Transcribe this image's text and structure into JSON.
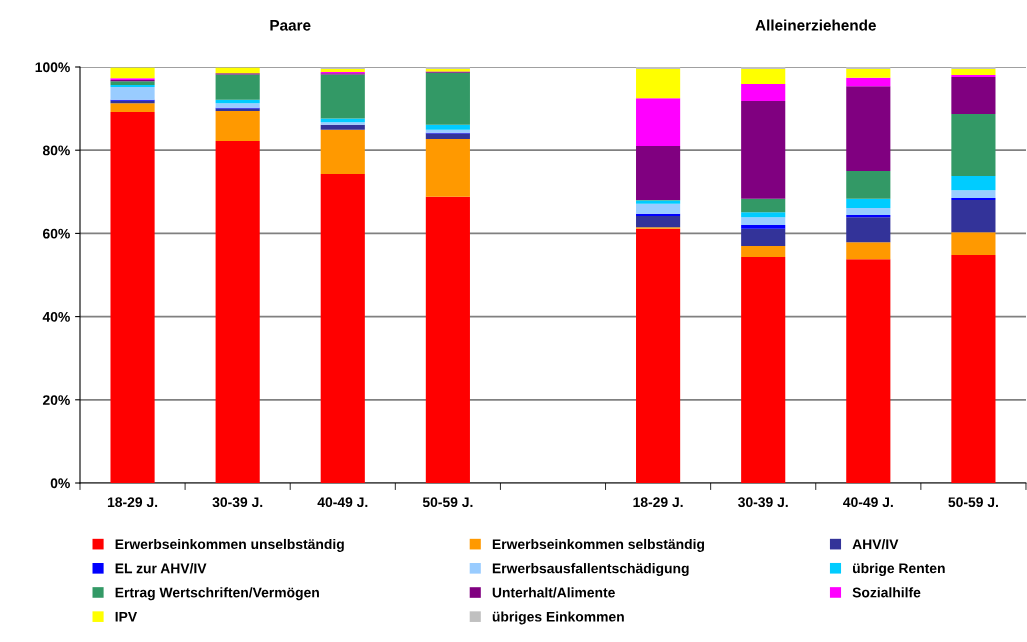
{
  "chart_data": {
    "type": "bar",
    "stacked": true,
    "categories": [
      "18-29 J.",
      "30-39 J.",
      "40-49 J.",
      "50-59 J.",
      null,
      "18-29 J.",
      "30-39 J.",
      "40-49 J.",
      "50-59 J."
    ],
    "annotations": [
      "Paare",
      "Alleinerziehende"
    ],
    "series": [
      {
        "name": "Erwerbseinkommen unselbständig",
        "color": "#ff0000",
        "values": [
          89.2,
          82.2,
          74.3,
          68.8,
          null,
          61.1,
          54.3,
          53.8,
          54.8
        ]
      },
      {
        "name": "Erwerbseinkommen selbständig",
        "color": "#ff9900",
        "values": [
          2.1,
          7.2,
          10.6,
          13.9,
          null,
          0.4,
          2.7,
          4.1,
          5.5
        ]
      },
      {
        "name": "AHV/IV",
        "color": "#333399",
        "values": [
          0.6,
          0.6,
          1.2,
          1.3,
          null,
          2.7,
          4.1,
          6.0,
          7.7
        ]
      },
      {
        "name": "EL zur AHV/IV",
        "color": "#0000ff",
        "values": [
          0.2,
          0.2,
          null,
          0.2,
          null,
          0.5,
          0.9,
          0.5,
          0.5
        ]
      },
      {
        "name": "Erwerbsausfallentschädigung",
        "color": "#99ccff",
        "values": [
          3.1,
          1.1,
          0.6,
          0.7,
          null,
          2.4,
          1.9,
          1.7,
          1.9
        ]
      },
      {
        "name": "übrige Renten",
        "color": "#00ccff",
        "values": [
          0.5,
          0.8,
          0.9,
          1.2,
          null,
          0.8,
          1.2,
          2.2,
          3.4
        ]
      },
      {
        "name": "Ertrag Wertschriften/Vermögen",
        "color": "#339966",
        "values": [
          0.9,
          6.1,
          10.6,
          12.5,
          null,
          0.1,
          3.2,
          6.7,
          14.9
        ]
      },
      {
        "name": "Unterhalt/Alimente",
        "color": "#800080",
        "values": [
          0.3,
          0.3,
          0.3,
          0.3,
          null,
          13.0,
          23.5,
          20.4,
          8.9
        ]
      },
      {
        "name": "Sozialhilfe",
        "color": "#ff00ff",
        "values": [
          0.4,
          null,
          0.3,
          0,
          null,
          11.5,
          4.1,
          2.0,
          0.5
        ]
      },
      {
        "name": "IPV",
        "color": "#ffff00",
        "values": [
          2.5,
          1.3,
          0.7,
          0.6,
          null,
          7.0,
          3.6,
          2.1,
          1.4
        ]
      },
      {
        "name": "übriges Einkommen",
        "color": "#c0c0c0",
        "values": [
          null,
          null,
          0.4,
          0.5,
          null,
          0.5,
          0.5,
          0.5,
          0.5
        ]
      }
    ],
    "ylim": [
      0,
      100
    ],
    "yticks": [
      {
        "value": 0,
        "label": "0%"
      },
      {
        "value": 20,
        "label": "20%"
      },
      {
        "value": 40,
        "label": "40%"
      },
      {
        "value": 60,
        "label": "60%"
      },
      {
        "value": 80,
        "label": "80%"
      },
      {
        "value": 100,
        "label": "100%"
      }
    ],
    "grid": "y",
    "legend": "bottom"
  }
}
